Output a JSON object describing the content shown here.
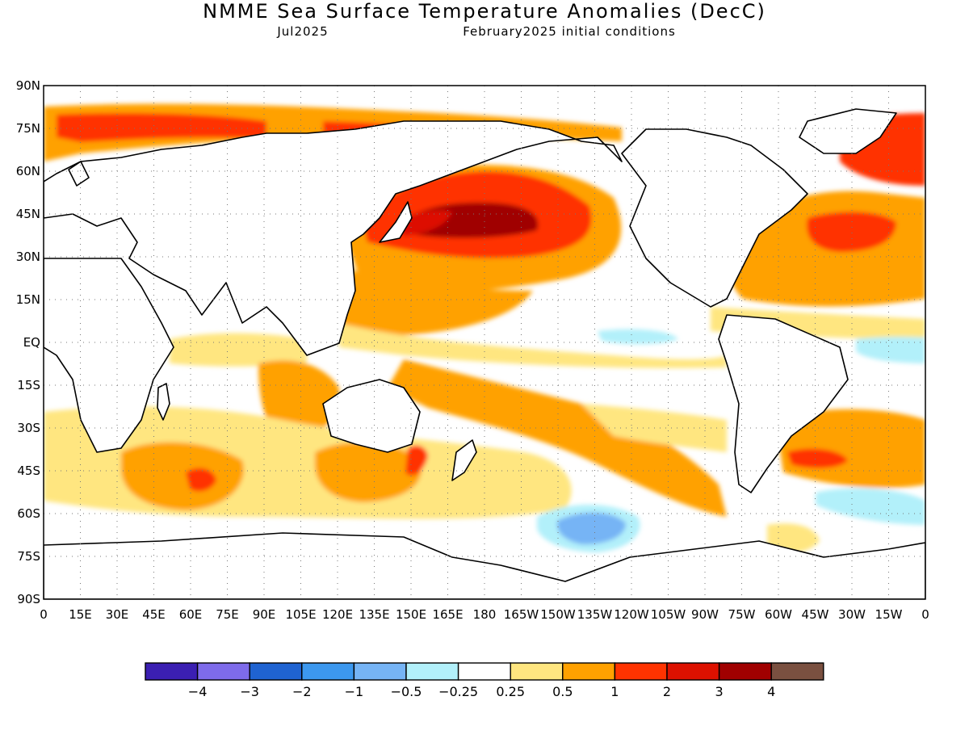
{
  "header": {
    "title": "NMME Sea Surface Temperature Anomalies (DecC)",
    "valid_month": "Jul2025",
    "init_conditions": "February2025 initial conditions"
  },
  "map": {
    "projection": "equirectangular",
    "lon_range": [
      0,
      360
    ],
    "lat_range": [
      -90,
      90
    ],
    "grid": "dotted",
    "lat_labels": [
      "90N",
      "75N",
      "60N",
      "45N",
      "30N",
      "15N",
      "EQ",
      "15S",
      "30S",
      "45S",
      "60S",
      "75S",
      "90S"
    ],
    "lon_labels": [
      "0",
      "15E",
      "30E",
      "45E",
      "60E",
      "75E",
      "90E",
      "105E",
      "120E",
      "135E",
      "150E",
      "165E",
      "180",
      "165W",
      "150W",
      "135W",
      "120W",
      "105W",
      "90W",
      "75W",
      "60W",
      "45W",
      "30W",
      "15W",
      "0"
    ]
  },
  "colorbar": {
    "colors": [
      "#3b1fb2",
      "#7e6bea",
      "#1f63d1",
      "#3c98ef",
      "#76b4f5",
      "#b2f0fa",
      "#ffffff",
      "#ffe680",
      "#ffa100",
      "#ff3300",
      "#dd1100",
      "#a00000",
      "#7a5040"
    ],
    "labels": [
      "-4",
      "-3",
      "-2",
      "-1",
      "-0.5",
      "-0.25",
      "0.25",
      "0.5",
      "1",
      "2",
      "3",
      "4"
    ]
  }
}
